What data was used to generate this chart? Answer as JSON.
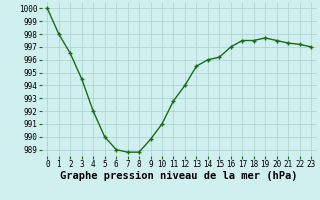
{
  "x": [
    0,
    1,
    2,
    3,
    4,
    5,
    6,
    7,
    8,
    9,
    10,
    11,
    12,
    13,
    14,
    15,
    16,
    17,
    18,
    19,
    20,
    21,
    22,
    23
  ],
  "y": [
    1000.0,
    998.0,
    996.5,
    994.5,
    992.0,
    990.0,
    989.0,
    988.8,
    988.8,
    989.8,
    991.0,
    992.8,
    994.0,
    995.5,
    996.0,
    996.2,
    997.0,
    997.5,
    997.5,
    997.7,
    997.5,
    997.3,
    997.2,
    997.0
  ],
  "xlabel": "Graphe pression niveau de la mer (hPa)",
  "ylim_min": 988.5,
  "ylim_max": 1000.5,
  "yticks": [
    989,
    990,
    991,
    992,
    993,
    994,
    995,
    996,
    997,
    998,
    999,
    1000
  ],
  "xticks": [
    0,
    1,
    2,
    3,
    4,
    5,
    6,
    7,
    8,
    9,
    10,
    11,
    12,
    13,
    14,
    15,
    16,
    17,
    18,
    19,
    20,
    21,
    22,
    23
  ],
  "line_color": "#1a6b1a",
  "marker_color": "#1a6b1a",
  "bg_color": "#cff0ee",
  "grid_color": "#aacfcf",
  "tick_label_fontsize": 5.5,
  "xlabel_fontsize": 7.5,
  "fig_width": 3.2,
  "fig_height": 2.0,
  "dpi": 100
}
